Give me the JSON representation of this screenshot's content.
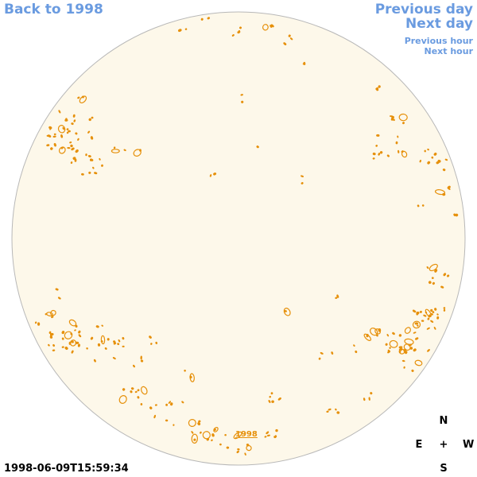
{
  "nav": {
    "back": "Back to 1998",
    "previous_day": "Previous day",
    "next_day": "Next day",
    "previous_hour": "Previous hour",
    "next_hour": "Next hour"
  },
  "map": {
    "year_link": "1998",
    "disk_fill": "#fdf8ea",
    "disk_stroke": "#b8b8b8",
    "contour_color": "#e6900a"
  },
  "compass": {
    "n": "N",
    "e": "E",
    "center": "+",
    "w": "W",
    "s": "S"
  },
  "timestamp": "1998-06-09T15:59:34"
}
